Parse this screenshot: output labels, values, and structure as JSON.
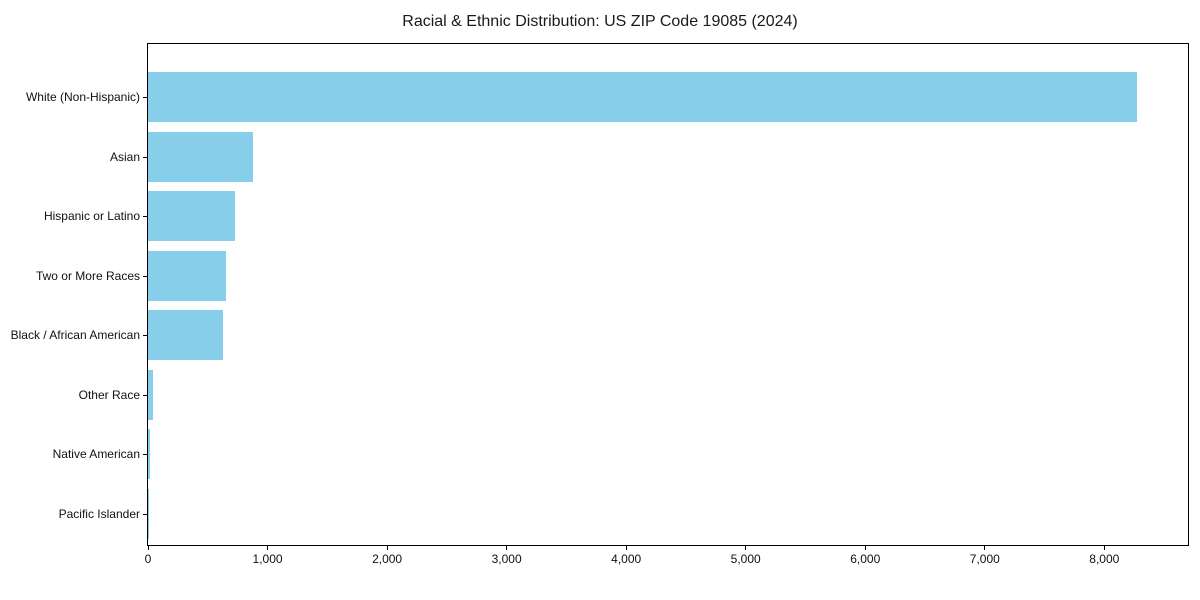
{
  "chart_data": {
    "type": "bar",
    "orientation": "horizontal",
    "title": "Racial & Ethnic Distribution: US ZIP Code 19085 (2024)",
    "categories": [
      "White (Non-Hispanic)",
      "Asian",
      "Hispanic or Latino",
      "Two or More Races",
      "Black / African American",
      "Other Race",
      "Native American",
      "Pacific Islander"
    ],
    "values": [
      8270,
      880,
      730,
      650,
      630,
      40,
      15,
      5
    ],
    "xlabel": "",
    "ylabel": "",
    "xlim": [
      0,
      8700
    ],
    "xticks": {
      "values": [
        0,
        1000,
        2000,
        3000,
        4000,
        5000,
        6000,
        7000,
        8000
      ],
      "labels": [
        "0",
        "1,000",
        "2,000",
        "3,000",
        "4,000",
        "5,000",
        "6,000",
        "7,000",
        "8,000"
      ]
    },
    "bar_color": "#87CEEB",
    "grid": false,
    "legend": false
  }
}
